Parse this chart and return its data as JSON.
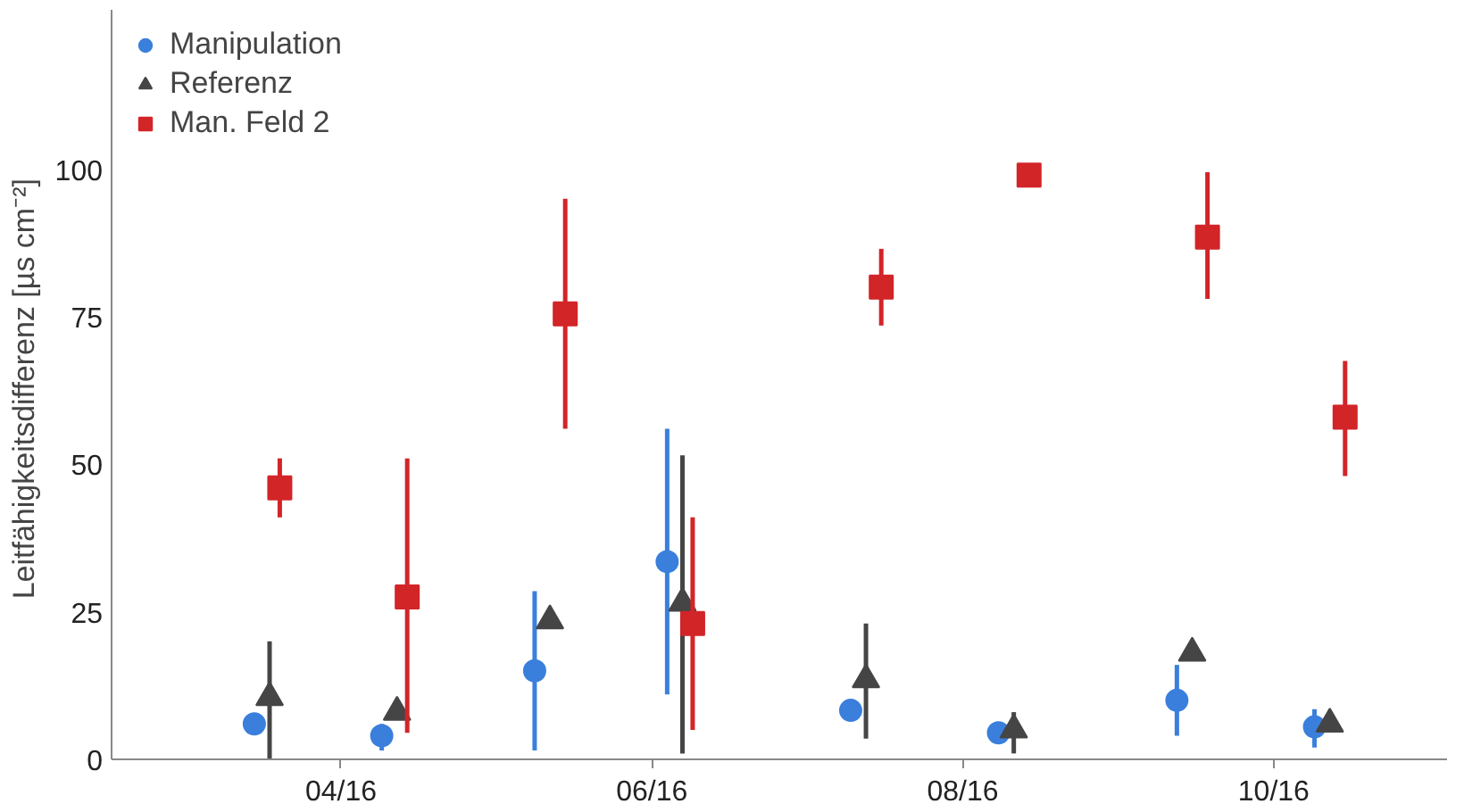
{
  "chart_data": {
    "type": "scatter",
    "ylabel": "Leitfähigkeitsdifferenz  [µs cm⁻²]",
    "xlim": [
      "2016-02-16",
      "2016-11-04"
    ],
    "ylim": [
      0,
      127
    ],
    "xticks": [
      {
        "value": "2016-04-01",
        "label": "04/16"
      },
      {
        "value": "2016-06-01",
        "label": "06/16"
      },
      {
        "value": "2016-08-01",
        "label": "08/16"
      },
      {
        "value": "2016-10-01",
        "label": "10/16"
      }
    ],
    "yticks": [
      0,
      25,
      50,
      75,
      100
    ],
    "grid": false,
    "legend": "top left",
    "series": [
      {
        "name": "Manipulation",
        "color": "#3a7fdc",
        "marker": "circle",
        "x": [
          "2016-03-15",
          "2016-04-09",
          "2016-05-09",
          "2016-06-04",
          "2016-07-10",
          "2016-08-08",
          "2016-09-12",
          "2016-10-09"
        ],
        "values": [
          6,
          4,
          15,
          33.5,
          8.3,
          4.5,
          10,
          5.5
        ],
        "errors": [
          null,
          [
            1.5,
            6
          ],
          [
            1.5,
            28.5
          ],
          [
            11,
            56
          ],
          null,
          null,
          [
            4,
            16
          ],
          [
            2,
            8.5
          ]
        ]
      },
      {
        "name": "Referenz",
        "color": "#454545",
        "marker": "triangle",
        "x": [
          "2016-03-18",
          "2016-04-12",
          "2016-05-12",
          "2016-06-07",
          "2016-07-13",
          "2016-08-11",
          "2016-09-15",
          "2016-10-12"
        ],
        "values": [
          10.5,
          8,
          23.5,
          26.5,
          13.5,
          5,
          18,
          6
        ],
        "errors": [
          [
            0,
            20
          ],
          null,
          null,
          [
            1,
            51.5
          ],
          [
            3.5,
            23
          ],
          [
            1,
            8
          ],
          null,
          null
        ]
      },
      {
        "name": "Man. Feld 2",
        "color": "#d22528",
        "marker": "square",
        "x": [
          "2016-03-20",
          "2016-04-14",
          "2016-05-15",
          "2016-06-09",
          "2016-07-16",
          "2016-08-14",
          "2016-09-18",
          "2016-10-15"
        ],
        "values": [
          46,
          27.5,
          75.5,
          23,
          80,
          99,
          88.5,
          58
        ],
        "errors": [
          [
            41,
            51
          ],
          [
            4.5,
            51
          ],
          [
            56,
            95
          ],
          [
            5,
            41
          ],
          [
            73.5,
            86.5
          ],
          null,
          [
            78,
            99.5
          ],
          [
            48,
            67.5
          ]
        ]
      }
    ]
  }
}
